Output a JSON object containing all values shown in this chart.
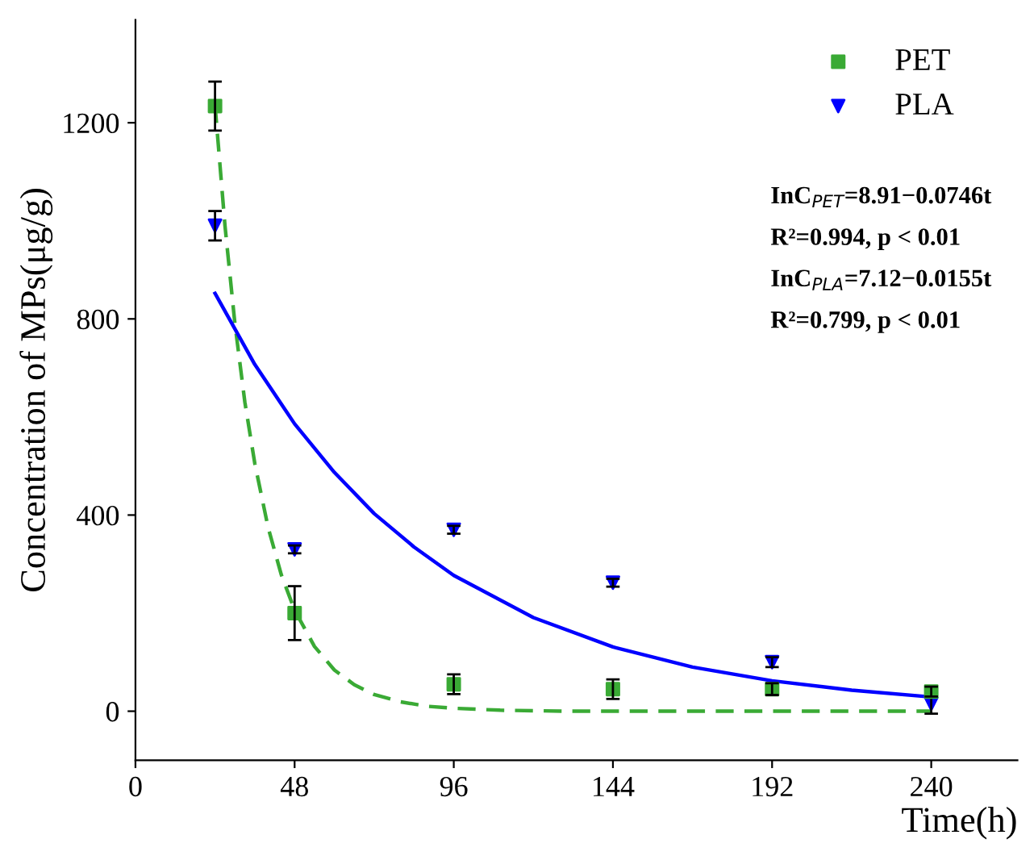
{
  "chart_data": {
    "type": "scatter",
    "xlabel": "Time(h)",
    "ylabel": "Concentration of MPs(μg/g)",
    "xlim": [
      0,
      266
    ],
    "ylim": [
      -100,
      1410
    ],
    "xticks": [
      0,
      48,
      96,
      144,
      192,
      240
    ],
    "yticks": [
      0,
      400,
      800,
      1200
    ],
    "grid": false,
    "legend": "top right",
    "series": [
      {
        "name": "PET",
        "marker": "square",
        "color": "#3aaa35",
        "x": [
          24,
          48,
          96,
          144,
          192,
          240
        ],
        "values": [
          1234,
          200,
          55,
          45,
          45,
          40
        ],
        "errors": [
          50,
          55,
          20,
          20,
          12,
          10
        ]
      },
      {
        "name": "PLA",
        "marker": "triangle",
        "color": "#0000ff",
        "x": [
          24,
          48,
          96,
          144,
          192,
          240
        ],
        "values": [
          990,
          330,
          370,
          262,
          100,
          15
        ],
        "errors": [
          30,
          8,
          8,
          8,
          10,
          20
        ]
      },
      {
        "type": "line",
        "line_style": "dashed",
        "color": "#3aaa35",
        "x": [
          24,
          27,
          30,
          33,
          36,
          40,
          44,
          48,
          54,
          60,
          66,
          72,
          80,
          88,
          96,
          110,
          130,
          160,
          200,
          240
        ],
        "values": [
          1236,
          990,
          790,
          630,
          505,
          375,
          278,
          206,
          132,
          84,
          54,
          34,
          19,
          10,
          6,
          2,
          0,
          0,
          0,
          0
        ]
      },
      {
        "type": "line",
        "line_style": "solid",
        "color": "#0000ff",
        "x": [
          24,
          36,
          48,
          60,
          72,
          84,
          96,
          120,
          144,
          168,
          192,
          216,
          240
        ],
        "values": [
          852,
          707,
          586,
          487,
          403,
          335,
          277,
          191,
          131,
          90,
          62,
          43,
          29
        ]
      }
    ],
    "annotations": [
      "InC$_{PET}$=8.91−0.0746t",
      "R²=0.994, p < 0.01",
      "InC$_{PLA}$=7.12−0.0155t",
      "R²=0.799, p < 0.01"
    ]
  }
}
